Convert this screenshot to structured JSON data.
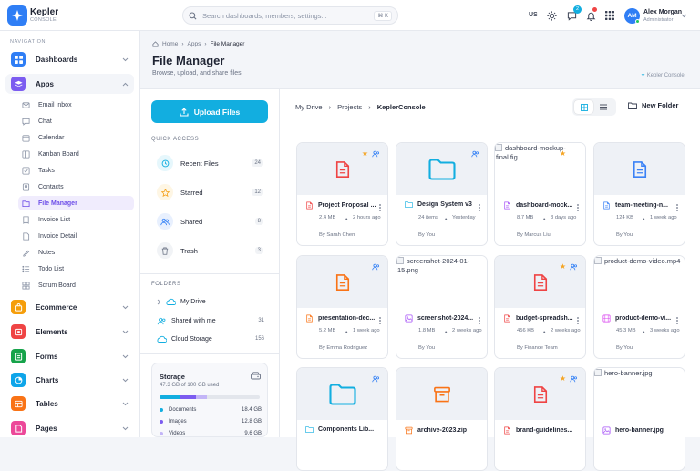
{
  "brand": {
    "name": "Kepler",
    "sub": "CONSOLE"
  },
  "search": {
    "placeholder": "Search dashboards, members, settings...",
    "shortcut": "⌘ K"
  },
  "header": {
    "lang": "US",
    "chat_badge": "2",
    "user_name": "Alex Morgan",
    "user_role": "Administrator",
    "avatar_initials": "AM"
  },
  "sidebar": {
    "section": "NAVIGATION",
    "items": [
      {
        "label": "Dashboards",
        "color": "#2f7ef5",
        "icon": "grid-icon"
      },
      {
        "label": "Apps",
        "color": "#7c5cf0",
        "icon": "layers-icon",
        "expanded": true
      },
      {
        "label": "Ecommerce",
        "color": "#f59e0b",
        "icon": "bag-icon"
      },
      {
        "label": "Elements",
        "color": "#ef4444",
        "icon": "box-icon"
      },
      {
        "label": "Forms",
        "color": "#16a34a",
        "icon": "form-icon"
      },
      {
        "label": "Charts",
        "color": "#0ea5e9",
        "icon": "pie-icon"
      },
      {
        "label": "Tables",
        "color": "#f97316",
        "icon": "table-icon"
      },
      {
        "label": "Pages",
        "color": "#ec4899",
        "icon": "page-icon"
      }
    ],
    "apps": [
      "Email Inbox",
      "Chat",
      "Calendar",
      "Kanban Board",
      "Tasks",
      "Contacts",
      "File Manager",
      "Invoice List",
      "Invoice Detail",
      "Notes",
      "Todo List",
      "Scrum Board"
    ],
    "active_app": "File Manager"
  },
  "page": {
    "crumbs": [
      "Home",
      "Apps",
      "File Manager"
    ],
    "title": "File Manager",
    "subtitle": "Browse, upload, and share files",
    "brand_note": "Kepler Console"
  },
  "panel": {
    "upload": "Upload Files",
    "quick_title": "QUICK ACCESS",
    "quick": [
      {
        "label": "Recent Files",
        "count": "24",
        "color": "#12aee0",
        "bg": "#e6f7fc"
      },
      {
        "label": "Starred",
        "count": "12",
        "color": "#f5a524",
        "bg": "#fef6e4"
      },
      {
        "label": "Shared",
        "count": "8",
        "color": "#2f7ef5",
        "bg": "#e8f0fe"
      },
      {
        "label": "Trash",
        "count": "3",
        "color": "#6b7385",
        "bg": "#f1f3f6"
      }
    ],
    "folders_title": "FOLDERS",
    "folders": [
      {
        "label": "My Drive",
        "count": ""
      },
      {
        "label": "Shared with me",
        "count": "31"
      },
      {
        "label": "Cloud Storage",
        "count": "156"
      }
    ],
    "storage": {
      "title": "Storage",
      "used": "47.3 GB of 100 GB used",
      "used_fraction": 0.473,
      "segments": [
        {
          "name": "Documents",
          "value": "18.4 GB",
          "gb": 18.4,
          "color": "#12aee0"
        },
        {
          "name": "Images",
          "value": "12.8 GB",
          "gb": 12.8,
          "color": "#7c5cf0"
        },
        {
          "name": "Videos",
          "value": "9.6 GB",
          "gb": 9.6,
          "color": "#c3b5f7"
        }
      ]
    }
  },
  "files": {
    "crumbs": [
      "My Drive",
      "Projects",
      "KeplerConsole"
    ],
    "new_folder": "New Folder",
    "cards": [
      {
        "name": "Project Proposal ...",
        "size": "2.4 MB",
        "date": "2 hours ago",
        "by": "By Sarah Chen",
        "kind": "pdf",
        "star": true,
        "shared": true,
        "alt": ""
      },
      {
        "name": "Design System v3",
        "size": "24 items",
        "date": "Yesterday",
        "by": "By You",
        "kind": "folder",
        "star": false,
        "shared": true,
        "alt": ""
      },
      {
        "name": "dashboard-mock...",
        "size": "8.7 MB",
        "date": "3 days ago",
        "by": "By Marcus Liu",
        "kind": "fig",
        "star": true,
        "shared": false,
        "alt": "dashboard-mockup-final.fig"
      },
      {
        "name": "team-meeting-n...",
        "size": "124 KB",
        "date": "1 week ago",
        "by": "By You",
        "kind": "doc",
        "star": false,
        "shared": false,
        "alt": ""
      },
      {
        "name": "presentation-dec...",
        "size": "5.2 MB",
        "date": "1 week ago",
        "by": "By Emma Rodriguez",
        "kind": "ppt",
        "star": false,
        "shared": true,
        "alt": ""
      },
      {
        "name": "screenshot-2024...",
        "size": "1.8 MB",
        "date": "2 weeks ago",
        "by": "By You",
        "kind": "image",
        "star": false,
        "shared": false,
        "alt": "screenshot-2024-01-15.png"
      },
      {
        "name": "budget-spreadsh...",
        "size": "456 KB",
        "date": "2 weeks ago",
        "by": "By Finance Team",
        "kind": "sheet",
        "star": true,
        "shared": true,
        "alt": ""
      },
      {
        "name": "product-demo-vi...",
        "size": "45.3 MB",
        "date": "3 weeks ago",
        "by": "By You",
        "kind": "video",
        "star": false,
        "shared": false,
        "alt": "product-demo-video.mp4"
      },
      {
        "name": "Components Lib...",
        "size": "",
        "date": "",
        "by": "",
        "kind": "folder",
        "star": false,
        "shared": true,
        "alt": ""
      },
      {
        "name": "archive-2023.zip",
        "size": "",
        "date": "",
        "by": "",
        "kind": "zip",
        "star": false,
        "shared": false,
        "alt": ""
      },
      {
        "name": "brand-guidelines...",
        "size": "",
        "date": "",
        "by": "",
        "kind": "pdf",
        "star": true,
        "shared": true,
        "alt": ""
      },
      {
        "name": "hero-banner.jpg",
        "size": "",
        "date": "",
        "by": "",
        "kind": "image",
        "star": false,
        "shared": false,
        "alt": "hero-banner.jpg"
      }
    ]
  }
}
